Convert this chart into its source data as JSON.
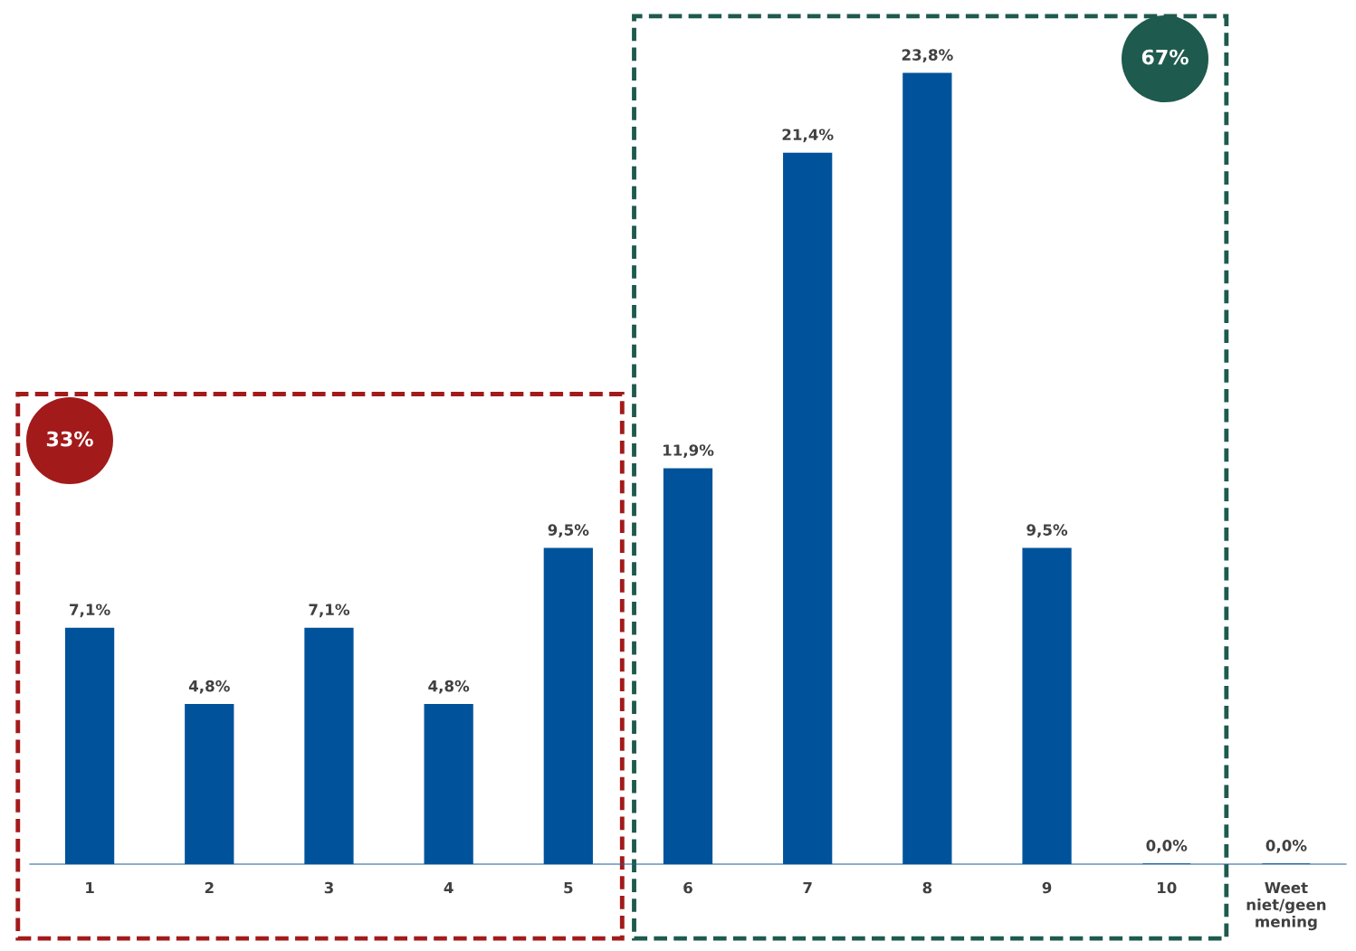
{
  "chart_data": {
    "type": "bar",
    "categories": [
      "1",
      "2",
      "3",
      "4",
      "5",
      "6",
      "7",
      "8",
      "9",
      "10",
      "Weet\nniet/geen\nmening"
    ],
    "values": [
      7.1,
      4.8,
      7.1,
      4.8,
      9.5,
      11.9,
      21.4,
      23.8,
      9.5,
      0.0,
      0.0
    ],
    "value_labels": [
      "7,1%",
      "4,8%",
      "7,1%",
      "4,8%",
      "9,5%",
      "11,9%",
      "21,4%",
      "23,8%",
      "9,5%",
      "0,0%",
      "0,0%"
    ],
    "color": "#00539b",
    "annotations": [
      "33%",
      "67%"
    ],
    "grid": false,
    "legend": false
  }
}
